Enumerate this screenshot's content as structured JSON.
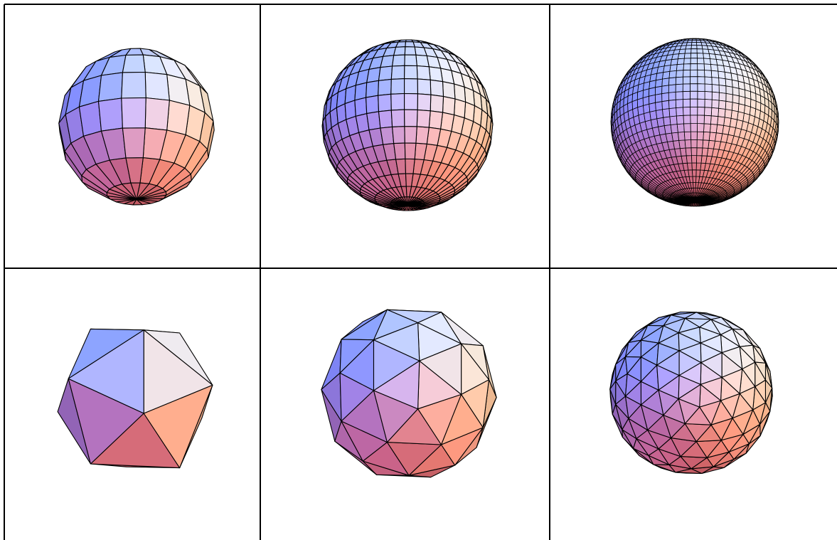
{
  "figure": {
    "kind": "sphere-mesh-comparison",
    "rows": [
      {
        "name": "uv-sphere-row",
        "cells": [
          {
            "mesh": "uv-sphere",
            "lon_segments": 20,
            "lat_segments": 8
          },
          {
            "mesh": "uv-sphere",
            "lon_segments": 40,
            "lat_segments": 16
          },
          {
            "mesh": "uv-sphere",
            "lon_segments": 72,
            "lat_segments": 32
          }
        ]
      },
      {
        "name": "geodesic-sphere-row",
        "cells": [
          {
            "mesh": "geodesic-sphere",
            "subdivisions": 0
          },
          {
            "mesh": "geodesic-sphere",
            "subdivisions": 1
          },
          {
            "mesh": "geodesic-sphere",
            "subdivisions": 2
          }
        ]
      }
    ],
    "colors": {
      "background": "#ffffff",
      "grid_line": "#000000",
      "edge": "#000000",
      "light_top": "#5aa0ff",
      "light_left": "#2a2ab0",
      "light_right": "#ffd060",
      "light_bottom": "#c02010",
      "base": "#b8a0c8"
    }
  }
}
